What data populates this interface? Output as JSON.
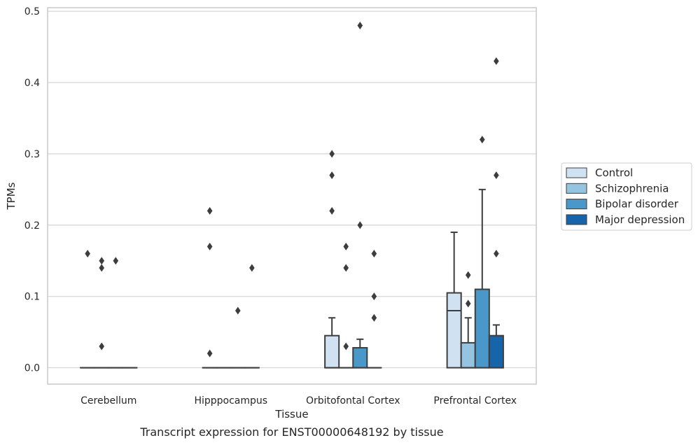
{
  "chart_data": {
    "type": "box",
    "caption": "Transcript expression for ENST00000648192 by tissue",
    "xlabel": "Tissue",
    "ylabel": "TPMs",
    "ylim": [
      -0.023,
      0.505
    ],
    "yticks": [
      "0.0",
      "0.1",
      "0.2",
      "0.3",
      "0.4",
      "0.5"
    ],
    "ytick_values": [
      0,
      0.1,
      0.2,
      0.3,
      0.4,
      0.5
    ],
    "grid": true,
    "legend_position": "right",
    "categories": [
      "Cerebellum",
      "Hipppocampus",
      "Orbitofontal Cortex",
      "Prefrontal Cortex"
    ],
    "series": [
      {
        "name": "Control",
        "color": "#d0e1f2"
      },
      {
        "name": "Schizophrenia",
        "color": "#94c4df"
      },
      {
        "name": "Bipolar disorder",
        "color": "#4a98c9"
      },
      {
        "name": "Major depression",
        "color": "#1764ab"
      }
    ],
    "boxes": [
      [
        {
          "q1": 0,
          "median": 0,
          "q3": 0,
          "whisker_low": 0,
          "whisker_high": 0,
          "outliers": [
            0.16
          ]
        },
        {
          "q1": 0,
          "median": 0,
          "q3": 0,
          "whisker_low": 0,
          "whisker_high": 0,
          "outliers": [
            0.15,
            0.14,
            0.03
          ]
        },
        {
          "q1": 0,
          "median": 0,
          "q3": 0,
          "whisker_low": 0,
          "whisker_high": 0,
          "outliers": [
            0.15
          ]
        },
        {
          "q1": 0,
          "median": 0,
          "q3": 0,
          "whisker_low": 0,
          "whisker_high": 0,
          "outliers": []
        }
      ],
      [
        {
          "q1": 0,
          "median": 0,
          "q3": 0,
          "whisker_low": 0,
          "whisker_high": 0,
          "outliers": [
            0.22,
            0.17,
            0.02
          ]
        },
        {
          "q1": 0,
          "median": 0,
          "q3": 0,
          "whisker_low": 0,
          "whisker_high": 0,
          "outliers": []
        },
        {
          "q1": 0,
          "median": 0,
          "q3": 0,
          "whisker_low": 0,
          "whisker_high": 0,
          "outliers": [
            0.08
          ]
        },
        {
          "q1": 0,
          "median": 0,
          "q3": 0,
          "whisker_low": 0,
          "whisker_high": 0,
          "outliers": [
            0.14
          ]
        }
      ],
      [
        {
          "q1": 0,
          "median": 0,
          "q3": 0.045,
          "whisker_low": 0,
          "whisker_high": 0.07,
          "outliers": [
            0.3,
            0.27,
            0.22
          ]
        },
        {
          "q1": 0,
          "median": 0,
          "q3": 0,
          "whisker_low": 0,
          "whisker_high": 0,
          "outliers": [
            0.17,
            0.14,
            0.03
          ]
        },
        {
          "q1": 0,
          "median": 0,
          "q3": 0.028,
          "whisker_low": 0,
          "whisker_high": 0.04,
          "outliers": [
            0.48,
            0.2
          ]
        },
        {
          "q1": 0,
          "median": 0,
          "q3": 0,
          "whisker_low": 0,
          "whisker_high": 0,
          "outliers": [
            0.16,
            0.1,
            0.07
          ]
        }
      ],
      [
        {
          "q1": 0,
          "median": 0.08,
          "q3": 0.105,
          "whisker_low": 0,
          "whisker_high": 0.19,
          "outliers": []
        },
        {
          "q1": 0,
          "median": 0,
          "q3": 0.035,
          "whisker_low": 0,
          "whisker_high": 0.07,
          "outliers": [
            0.13,
            0.09
          ]
        },
        {
          "q1": 0,
          "median": 0,
          "q3": 0.11,
          "whisker_low": 0,
          "whisker_high": 0.25,
          "outliers": [
            0.32
          ]
        },
        {
          "q1": 0,
          "median": 0,
          "q3": 0.045,
          "whisker_low": 0,
          "whisker_high": 0.06,
          "outliers": [
            0.43,
            0.27,
            0.16
          ]
        }
      ]
    ]
  }
}
